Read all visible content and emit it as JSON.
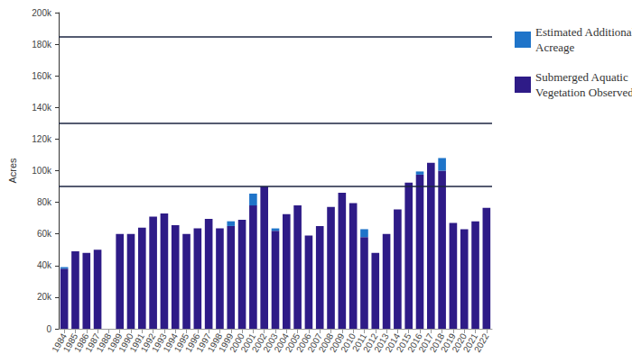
{
  "chart_data": {
    "type": "bar",
    "stacked": true,
    "grid": false,
    "legend": "top-right",
    "y_label": "Acres",
    "categories": [
      "1984",
      "1985",
      "1986",
      "1987",
      "1988",
      "1989",
      "1990",
      "1991",
      "1992",
      "1993",
      "1994",
      "1995",
      "1996",
      "1997",
      "1998",
      "1999",
      "2000",
      "2001",
      "2002",
      "2003",
      "2004",
      "2005",
      "2006",
      "2007",
      "2008",
      "2009",
      "2010",
      "2011",
      "2012",
      "2013",
      "2014",
      "2015",
      "2016",
      "2017",
      "2018",
      "2019",
      "2020",
      "2021",
      "2022"
    ],
    "series": [
      {
        "name": "Estimated Additional Acreage",
        "color": "#1f74c9",
        "values": [
          1000,
          0,
          0,
          0,
          null,
          0,
          0,
          0,
          0,
          0,
          0,
          0,
          0,
          0,
          0,
          3000,
          0,
          7500,
          0,
          1500,
          0,
          0,
          0,
          0,
          0,
          0,
          0,
          5000,
          0,
          0,
          0,
          0,
          2000,
          0,
          8000,
          0,
          0,
          0,
          0
        ]
      },
      {
        "name": "Submerged Aquatic Vegetation Observed",
        "color": "#2e1b87",
        "values": [
          38000,
          49000,
          48000,
          50000,
          null,
          60000,
          60000,
          64000,
          71000,
          73000,
          65500,
          60000,
          63500,
          69500,
          63500,
          65000,
          69000,
          78000,
          90000,
          62000,
          72500,
          78000,
          59000,
          65000,
          77000,
          86000,
          79500,
          58000,
          48000,
          60000,
          75500,
          92500,
          97500,
          105000,
          100000,
          67000,
          63000,
          68000,
          76500
        ]
      }
    ],
    "reference_lines": [
      90000,
      130000,
      185000
    ],
    "ylim": [
      0,
      200000
    ],
    "yticks": [
      0,
      {
        "value": 20000,
        "label": "20k"
      },
      {
        "value": 40000,
        "label": "40k"
      },
      {
        "value": 60000,
        "label": "60k"
      },
      {
        "value": 80000,
        "label": "80k"
      },
      {
        "value": 100000,
        "label": "100k"
      },
      {
        "value": 120000,
        "label": "120k"
      },
      {
        "value": 140000,
        "label": "140k"
      },
      {
        "value": 160000,
        "label": "160k"
      },
      {
        "value": 180000,
        "label": "180k"
      },
      {
        "value": 200000,
        "label": "200k"
      }
    ]
  }
}
